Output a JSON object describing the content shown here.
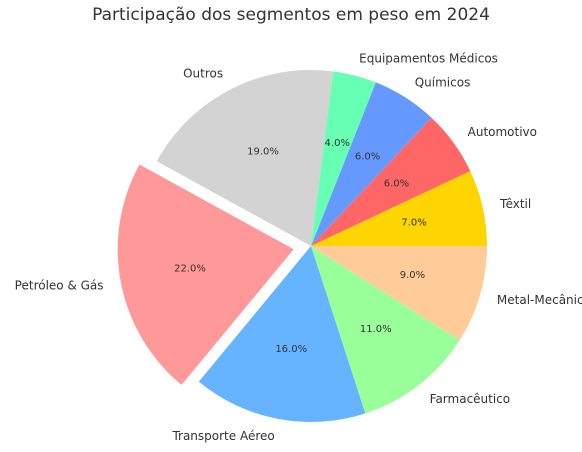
{
  "chart_data": {
    "type": "pie",
    "title": "Participação dos segmentos em peso em 2024",
    "start_angle_deg": 0,
    "direction": "counterclockwise",
    "slices": [
      {
        "label": "Têxtil",
        "value": 7.0,
        "pct_label": "7.0%",
        "color": "#ffd500",
        "exploded": false
      },
      {
        "label": "Automotivo",
        "value": 6.0,
        "pct_label": "6.0%",
        "color": "#ff6666",
        "exploded": false
      },
      {
        "label": "Químicos",
        "value": 6.0,
        "pct_label": "6.0%",
        "color": "#6699ff",
        "exploded": false
      },
      {
        "label": "Equipamentos Médicos",
        "value": 4.0,
        "pct_label": "4.0%",
        "color": "#66ffb3",
        "exploded": false
      },
      {
        "label": "Outros",
        "value": 19.0,
        "pct_label": "19.0%",
        "color": "#d3d3d3",
        "exploded": false
      },
      {
        "label": "Petróleo & Gás",
        "value": 22.0,
        "pct_label": "22.0%",
        "color": "#ff9999",
        "exploded": true
      },
      {
        "label": "Transporte Aéreo",
        "value": 16.0,
        "pct_label": "16.0%",
        "color": "#66b3ff",
        "exploded": false
      },
      {
        "label": "Farmacêutico",
        "value": 11.0,
        "pct_label": "11.0%",
        "color": "#99ff99",
        "exploded": false
      },
      {
        "label": "Metal-Mecânico",
        "value": 9.0,
        "pct_label": "9.0%",
        "color": "#ffcc99",
        "exploded": false
      }
    ]
  }
}
